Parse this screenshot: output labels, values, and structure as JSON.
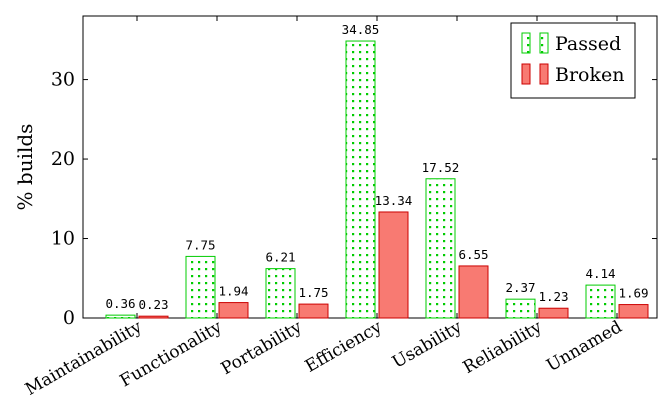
{
  "chart_data": {
    "type": "bar",
    "title": "",
    "xlabel": "",
    "ylabel": "% builds",
    "ylim": [
      0,
      38
    ],
    "yticks": [
      0,
      10,
      20,
      30
    ],
    "grid": false,
    "legend_position": "top-right",
    "categories": [
      "Maintainability",
      "Functionality",
      "Portability",
      "Efficiency",
      "Usability",
      "Reliability",
      "Unnamed"
    ],
    "series": [
      {
        "name": "Passed",
        "values": [
          0.36,
          7.75,
          6.21,
          34.85,
          17.52,
          2.37,
          4.14
        ],
        "labels": [
          "0.36",
          "7.75",
          "6.21",
          "34.85",
          "17.52",
          "2.37",
          "4.14"
        ],
        "style": "dotted",
        "color": "#00cc00",
        "fill": "#ffffff"
      },
      {
        "name": "Broken",
        "values": [
          0.23,
          1.94,
          1.75,
          13.34,
          6.55,
          1.23,
          1.69
        ],
        "labels": [
          "0.23",
          "1.94",
          "1.75",
          "13.34",
          "6.55",
          "1.23",
          "1.69"
        ],
        "style": "solid",
        "color": "#cc0000",
        "fill": "#f87a72"
      }
    ]
  }
}
